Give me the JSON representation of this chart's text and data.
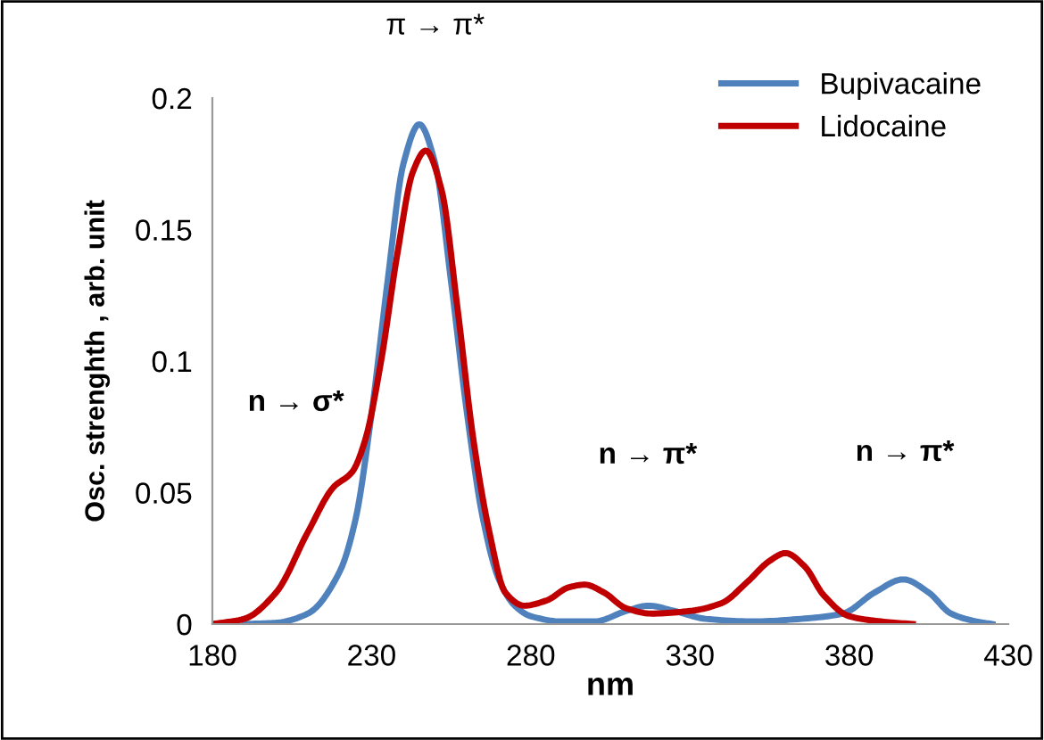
{
  "chart_data": {
    "type": "line",
    "xlabel": "nm",
    "ylabel": "Osc. strenghth , arb. unit",
    "series": [
      {
        "name": "Bupivacaine",
        "color": "#4f81bd",
        "x": [
          190,
          200,
          210,
          220,
          225,
          230,
          235,
          240,
          245,
          250,
          255,
          260,
          265,
          270,
          275,
          280,
          290,
          300,
          310,
          317,
          325,
          335,
          350,
          365,
          378,
          388,
          397,
          405,
          412,
          420,
          425
        ],
        "values": [
          0,
          0.0005,
          0.004,
          0.02,
          0.04,
          0.08,
          0.13,
          0.175,
          0.19,
          0.175,
          0.13,
          0.08,
          0.04,
          0.017,
          0.007,
          0.003,
          0.001,
          0.001,
          0.005,
          0.007,
          0.005,
          0.002,
          0.001,
          0.002,
          0.004,
          0.012,
          0.017,
          0.012,
          0.004,
          0.001,
          0
        ]
      },
      {
        "name": "Lidocaine",
        "color": "#c00000",
        "x": [
          180,
          190,
          200,
          210,
          218,
          224,
          228,
          233,
          238,
          243,
          247,
          252,
          257,
          262,
          267,
          272,
          278,
          285,
          292,
          297,
          303,
          310,
          318,
          330,
          340,
          348,
          355,
          360,
          366,
          372,
          380,
          390,
          400
        ],
        "values": [
          0,
          0.002,
          0.012,
          0.035,
          0.052,
          0.058,
          0.07,
          0.1,
          0.14,
          0.172,
          0.18,
          0.165,
          0.12,
          0.07,
          0.035,
          0.012,
          0.007,
          0.009,
          0.014,
          0.015,
          0.012,
          0.006,
          0.004,
          0.005,
          0.008,
          0.016,
          0.024,
          0.027,
          0.022,
          0.011,
          0.003,
          0.001,
          0
        ]
      }
    ],
    "xlim": [
      180,
      430
    ],
    "xticks": [
      180,
      230,
      280,
      330,
      380,
      430
    ],
    "ylim": [
      0,
      0.2
    ],
    "yticks": [
      0,
      0.05,
      0.1,
      0.15,
      0.2
    ],
    "annotations": [
      "π → π*",
      "n → σ*",
      "n → π*",
      "n → π*"
    ],
    "legend": "top right",
    "grid": false,
    "marker": "none",
    "line_style": "solid"
  }
}
